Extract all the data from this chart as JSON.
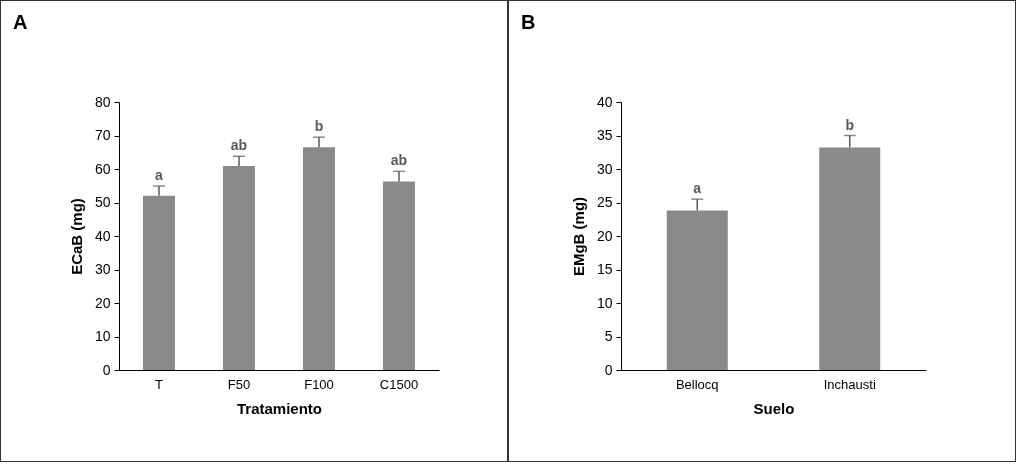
{
  "chart_data": [
    {
      "type": "bar",
      "title": "A",
      "xlabel": "Tratamiento",
      "ylabel": "ECaB (mg)",
      "categories": [
        "T",
        "F50",
        "F100",
        "C1500"
      ],
      "values": [
        52,
        60.9,
        66.5,
        56.3
      ],
      "color": "#898989",
      "errors": [
        [
          52,
          54.9
        ],
        [
          60.9,
          63.8
        ],
        [
          66.5,
          69.5
        ],
        [
          56.3,
          59.3
        ]
      ],
      "ylim": [
        0,
        80
      ],
      "yticks": [
        0,
        10,
        20,
        30,
        40,
        50,
        60,
        70,
        80
      ],
      "grid": false,
      "annotations": [
        {
          "text": "a",
          "x": "T",
          "y": 54.9
        },
        {
          "text": "ab",
          "x": "F50",
          "y": 63.8
        },
        {
          "text": "b",
          "x": "F100",
          "y": 69.5
        },
        {
          "text": "ab",
          "x": "C1500",
          "y": 59.3
        }
      ]
    },
    {
      "type": "bar",
      "title": "B",
      "xlabel": "Suelo",
      "ylabel": "EMgB (mg)",
      "categories": [
        "Bellocq",
        "Inchausti"
      ],
      "values": [
        23.8,
        33.2
      ],
      "color": "#898989",
      "errors": [
        [
          23.8,
          25.5
        ],
        [
          33.2,
          35
        ]
      ],
      "ylim": [
        0,
        40
      ],
      "yticks": [
        0,
        5,
        10,
        15,
        20,
        25,
        30,
        35,
        40
      ],
      "grid": false,
      "annotations": [
        {
          "text": "a",
          "x": "Bellocq",
          "y": 25.5
        },
        {
          "text": "b",
          "x": "Inchausti",
          "y": 35
        }
      ]
    }
  ]
}
